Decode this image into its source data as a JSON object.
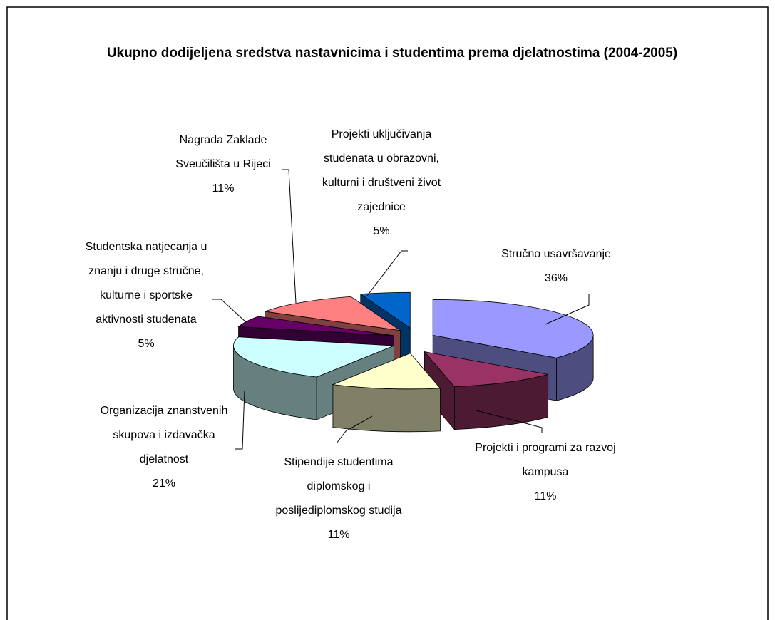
{
  "chart_data": {
    "type": "pie",
    "title": "Ukupno dodijeljena sredstva nastavnicima i studentima prema djelatnostima (2004-2005)",
    "categories": [
      "Stručno usavršavanje",
      "Projekti i programi za razvoj kampusa",
      "Stipendije studentima diplomskog i poslijediplomskog studija",
      "Organizacija znanstvenih skupova i izdavačka djelatnost",
      "Studentska natjecanja u znanju i druge stručne, kulturne i sportske aktivnosti studenata",
      "Nagrada Zaklade Sveučilišta u Rijeci",
      "Projekti uključivanja studenata u obrazovni, kulturni i društveni život zajednice"
    ],
    "values": [
      36,
      11,
      11,
      21,
      5,
      11,
      5
    ],
    "value_labels": [
      "36%",
      "11%",
      "11%",
      "21%",
      "5%",
      "11%",
      "5%"
    ],
    "colors": [
      "#9999ff",
      "#993366",
      "#ffffcc",
      "#ccffff",
      "#660066",
      "#ff8080",
      "#0066cc"
    ]
  }
}
